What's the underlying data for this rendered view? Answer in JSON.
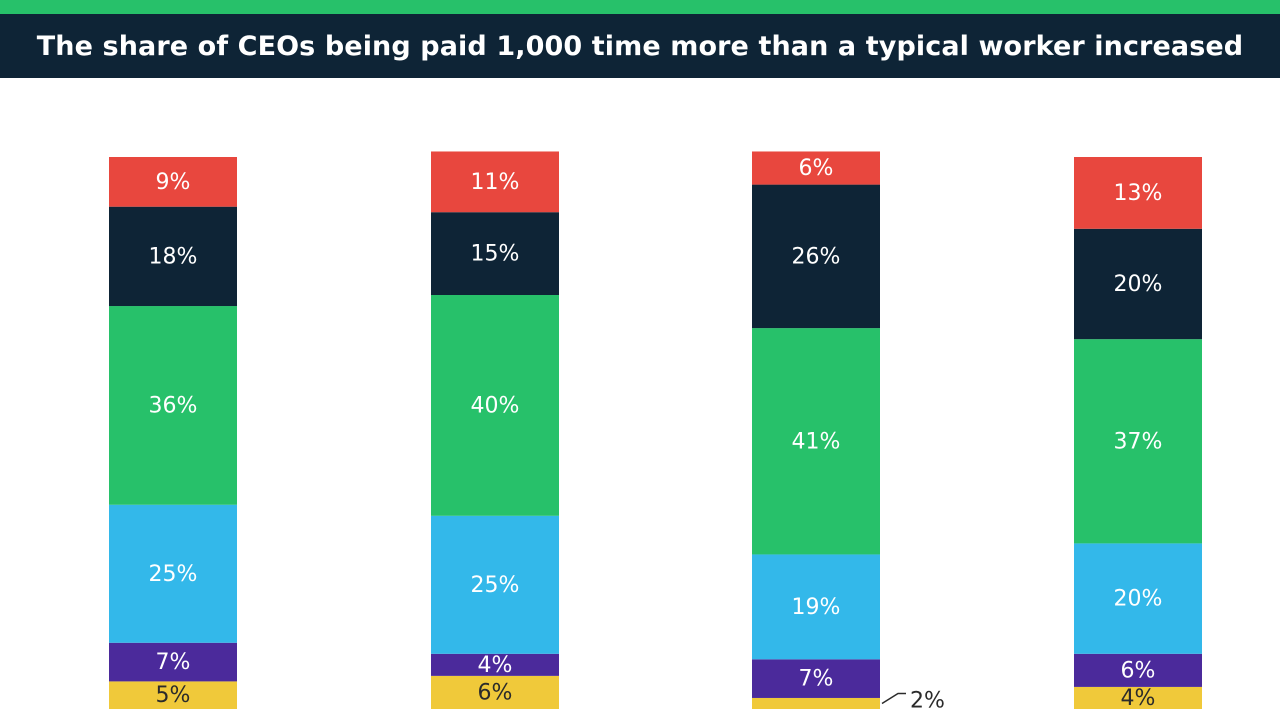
{
  "header": {
    "title": "The share of CEOs being paid 1,000 time more than a typical worker increased"
  },
  "colors": {
    "header_bg": "#0e2436",
    "top_strip": "#27c16a",
    "segments": [
      "#f0c93a",
      "#4b2a9b",
      "#33b8ea",
      "#27c16a",
      "#0e2436",
      "#e8473e"
    ],
    "label_dark": "#2b2b2b",
    "label_light": "#ffffff"
  },
  "chart_data": {
    "type": "bar",
    "stacked": true,
    "orientation": "vertical",
    "title": "The share of CEOs being paid 1,000 time more than a typical worker increased",
    "categories": [
      "",
      "",
      "",
      ""
    ],
    "ylim": [
      0,
      100
    ],
    "series": [
      {
        "name": "",
        "color": "#f0c93a",
        "values": [
          5,
          6,
          2,
          4
        ],
        "labels": [
          "5%",
          "6%",
          "2%",
          "4%"
        ]
      },
      {
        "name": "",
        "color": "#4b2a9b",
        "values": [
          7,
          4,
          7,
          6
        ],
        "labels": [
          "7%",
          "4%",
          "7%",
          "6%"
        ]
      },
      {
        "name": "",
        "color": "#33b8ea",
        "values": [
          25,
          25,
          19,
          20
        ],
        "labels": [
          "25%",
          "25%",
          "19%",
          "20%"
        ]
      },
      {
        "name": "",
        "color": "#27c16a",
        "values": [
          36,
          40,
          41,
          37
        ],
        "labels": [
          "36%",
          "40%",
          "41%",
          "37%"
        ]
      },
      {
        "name": "",
        "color": "#0e2436",
        "values": [
          18,
          15,
          26,
          20
        ],
        "labels": [
          "18%",
          "15%",
          "26%",
          "20%"
        ]
      },
      {
        "name": "",
        "color": "#e8473e",
        "values": [
          9,
          11,
          6,
          13
        ],
        "labels": [
          "9%",
          "11%",
          "6%",
          "13%"
        ]
      }
    ]
  }
}
